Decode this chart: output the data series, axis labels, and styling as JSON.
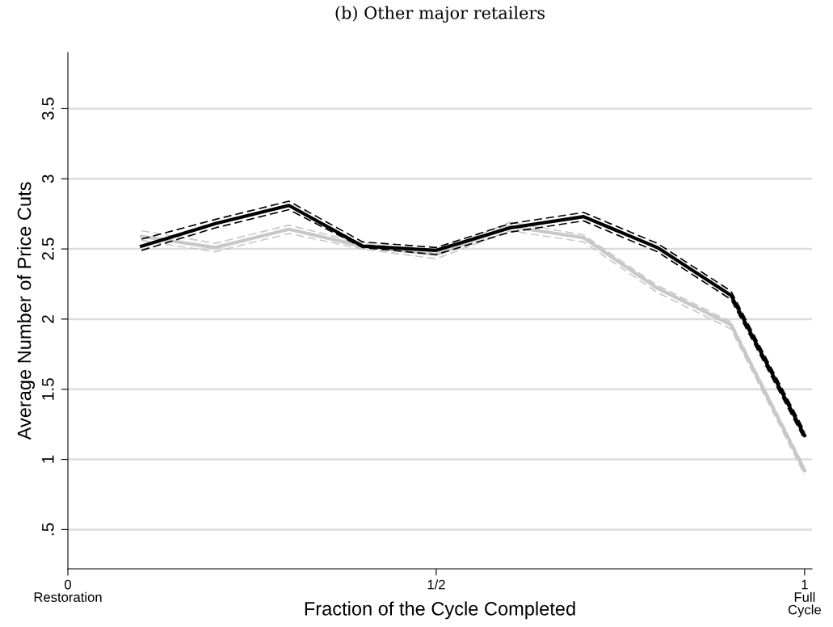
{
  "chart_data": {
    "type": "line",
    "title": "(b) Other major retailers",
    "xlabel": "Fraction of the Cycle Completed",
    "ylabel": "Average Number of Price Cuts",
    "x": [
      0.1,
      0.2,
      0.3,
      0.4,
      0.5,
      0.6,
      0.7,
      0.8,
      0.9,
      1.0
    ],
    "series": [
      {
        "color": "#c8c8c8",
        "line_style": "dashed",
        "values": [
          2.56,
          2.48,
          2.61,
          2.5,
          2.43,
          2.63,
          2.55,
          2.19,
          1.93,
          0.89
        ]
      },
      {
        "color": "#c8c8c8",
        "line_style": "dashed",
        "values": [
          2.63,
          2.54,
          2.67,
          2.54,
          2.48,
          2.69,
          2.6,
          2.24,
          1.98,
          0.94
        ]
      },
      {
        "color": "#c8c8c8",
        "values": [
          2.59,
          2.51,
          2.64,
          2.52,
          2.46,
          2.66,
          2.58,
          2.22,
          1.96,
          0.92
        ]
      },
      {
        "color": "#000000",
        "line_style": "dashed",
        "values": [
          2.49,
          2.65,
          2.78,
          2.51,
          2.46,
          2.62,
          2.7,
          2.48,
          2.14,
          1.14
        ]
      },
      {
        "color": "#000000",
        "line_style": "dashed",
        "values": [
          2.57,
          2.71,
          2.84,
          2.55,
          2.51,
          2.68,
          2.76,
          2.54,
          2.2,
          1.2
        ]
      },
      {
        "color": "#000000",
        "values": [
          2.52,
          2.68,
          2.81,
          2.52,
          2.49,
          2.65,
          2.73,
          2.51,
          2.17,
          1.17
        ]
      }
    ],
    "xlim": [
      0,
      1.01
    ],
    "ylim": [
      0.22,
      3.9
    ],
    "xticks": [
      {
        "value": 0,
        "label": "0\nRestoration"
      },
      {
        "value": 0.5,
        "label": "1/2"
      },
      {
        "value": 1,
        "label": "1\nFull\nCycle"
      }
    ],
    "yticks": [
      {
        "value": 0.5,
        "label": ".5"
      },
      1,
      1.5,
      2,
      2.5,
      3,
      3.5
    ],
    "grid": "y",
    "line_style": "solid",
    "marker": "none"
  }
}
